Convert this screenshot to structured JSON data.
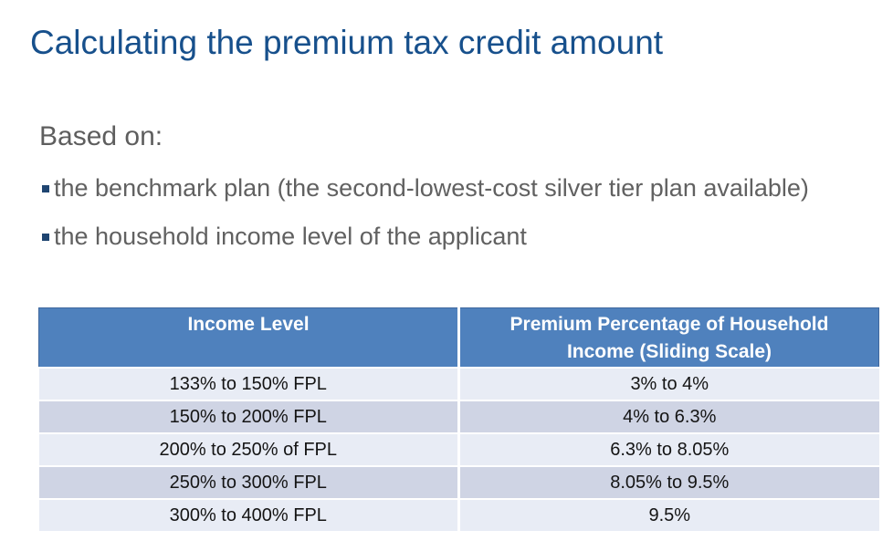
{
  "slide": {
    "title": "Calculating the premium tax credit amount",
    "heading": "Based on:",
    "bullets": [
      "the benchmark plan (the second-lowest-cost silver tier plan available)",
      "the household income level of the applicant"
    ]
  },
  "table": {
    "headers": [
      "Income Level",
      "Premium Percentage of Household Income (Sliding Scale)"
    ],
    "rows": [
      [
        "133% to 150% FPL",
        "3% to 4%"
      ],
      [
        "150% to 200% FPL",
        "4% to 6.3%"
      ],
      [
        "200% to 250% of FPL",
        "6.3% to 8.05%"
      ],
      [
        "250% to 300% FPL",
        "8.05% to 9.5%"
      ],
      [
        "300% to 400% FPL",
        "9.5%"
      ]
    ]
  },
  "colors": {
    "title_text": "#17508C",
    "heading_text": "#5E5E5E",
    "bullet_text": "#616161",
    "bullet_marker": "#1F4571",
    "table_header_bg": "#4F81BD",
    "table_header_text": "#FFFFFF",
    "table_header_border": "#40689E",
    "row_light": "#E8ECF5",
    "row_dark": "#CFD4E4",
    "body_text": "#141414"
  }
}
